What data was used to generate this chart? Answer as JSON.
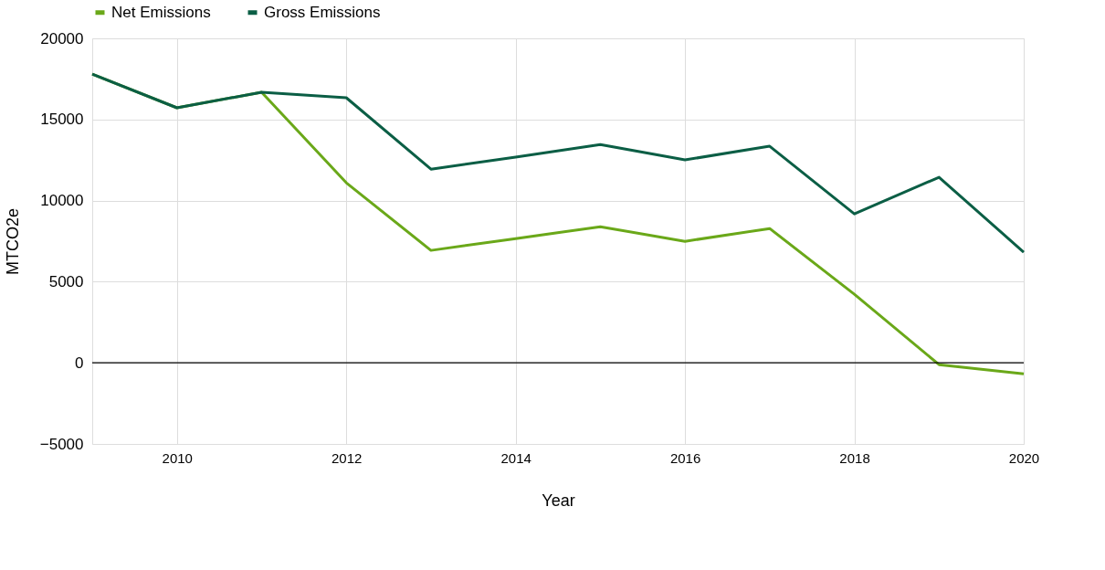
{
  "chart_data": {
    "type": "line",
    "xlabel": "Year",
    "ylabel": "MTCO2e",
    "x": [
      2009,
      2010,
      2011,
      2012,
      2013,
      2014,
      2015,
      2016,
      2017,
      2018,
      2019,
      2020
    ],
    "series": [
      {
        "name": "Net Emissions",
        "color": "#6aa819",
        "values": [
          17800,
          15720,
          16680,
          11100,
          6930,
          7660,
          8390,
          7490,
          8280,
          4230,
          -110,
          -680
        ]
      },
      {
        "name": "Gross Emissions",
        "color": "#0b5e45",
        "values": [
          17800,
          15720,
          16680,
          16340,
          11940,
          12680,
          13460,
          12510,
          13350,
          9180,
          11440,
          6820
        ]
      }
    ],
    "xlim": [
      2009,
      2020
    ],
    "xticks": [
      2010,
      2012,
      2014,
      2016,
      2018,
      2020
    ],
    "ylim": [
      -5000,
      20000
    ],
    "yticks": [
      -5000,
      0,
      5000,
      10000,
      15000,
      20000
    ],
    "ref_lines": [
      {
        "axis": "y",
        "value": 0,
        "color": "#000000"
      }
    ],
    "grid": true,
    "legend": "top",
    "marker": "none",
    "line_style": "solid"
  }
}
